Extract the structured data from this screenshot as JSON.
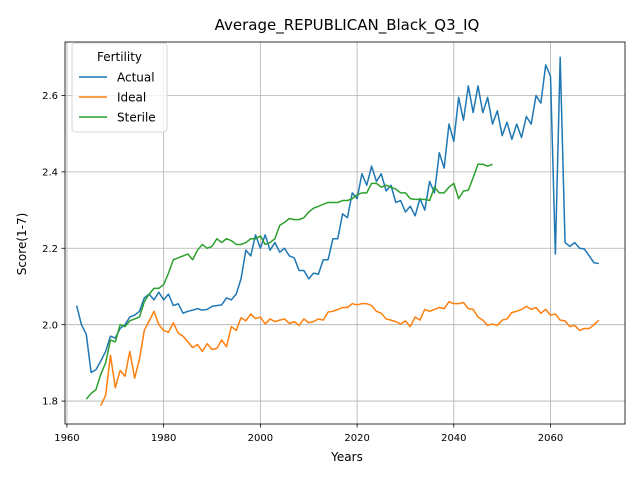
{
  "chart_data": {
    "type": "line",
    "title": "Average_REPUBLICAN_Black_Q3_IQ",
    "xlabel": "Years",
    "ylabel": "Score(1-7)",
    "xlim": [
      1959.6,
      2075.4
    ],
    "ylim": [
      1.74,
      2.74
    ],
    "xticks": [
      1960,
      1980,
      2000,
      2020,
      2040,
      2060
    ],
    "yticks": [
      1.8,
      2.0,
      2.2,
      2.4,
      2.6
    ],
    "ytick_labels": [
      "1.8",
      "2.0",
      "2.2",
      "2.4",
      "2.6"
    ],
    "grid": true,
    "legend": {
      "title": "Fertility",
      "placement": "top-left"
    },
    "series": [
      {
        "name": "Actual",
        "color": "#1f77b4",
        "x": [
          1962,
          1963,
          1964,
          1965,
          1966,
          1967,
          1968,
          1969,
          1970,
          1971,
          1972,
          1973,
          1974,
          1975,
          1976,
          1977,
          1978,
          1979,
          1980,
          1981,
          1982,
          1983,
          1984,
          1985,
          1986,
          1987,
          1988,
          1989,
          1990,
          1991,
          1992,
          1993,
          1994,
          1995,
          1996,
          1997,
          1998,
          1999,
          2000,
          2001,
          2002,
          2003,
          2004,
          2005,
          2006,
          2007,
          2008,
          2009,
          2010,
          2011,
          2012,
          2013,
          2014,
          2015,
          2016,
          2017,
          2018,
          2019,
          2020,
          2021,
          2022,
          2023,
          2024,
          2025,
          2026,
          2027,
          2028,
          2029,
          2030,
          2031,
          2032,
          2033,
          2034,
          2035,
          2036,
          2037,
          2038,
          2039,
          2040,
          2041,
          2042,
          2043,
          2044,
          2045,
          2046,
          2047,
          2048,
          2049,
          2050,
          2051,
          2052,
          2053,
          2054,
          2055,
          2056,
          2057,
          2058,
          2059,
          2060,
          2061,
          2062,
          2063,
          2064,
          2065,
          2066,
          2067,
          2068,
          2069,
          2070
        ],
        "values": [
          2.05,
          2.0,
          1.975,
          1.875,
          1.882,
          1.905,
          1.93,
          1.97,
          1.965,
          1.99,
          2.0,
          2.02,
          2.025,
          2.035,
          2.07,
          2.08,
          2.065,
          2.085,
          2.065,
          2.08,
          2.05,
          2.055,
          2.03,
          2.035,
          2.038,
          2.042,
          2.038,
          2.04,
          2.048,
          2.05,
          2.052,
          2.07,
          2.065,
          2.08,
          2.12,
          2.195,
          2.18,
          2.235,
          2.2,
          2.235,
          2.195,
          2.215,
          2.19,
          2.2,
          2.18,
          2.175,
          2.142,
          2.142,
          2.12,
          2.135,
          2.132,
          2.17,
          2.17,
          2.225,
          2.225,
          2.29,
          2.28,
          2.345,
          2.33,
          2.395,
          2.365,
          2.415,
          2.375,
          2.395,
          2.35,
          2.365,
          2.32,
          2.325,
          2.295,
          2.31,
          2.285,
          2.33,
          2.3,
          2.375,
          2.345,
          2.45,
          2.41,
          2.525,
          2.48,
          2.595,
          2.535,
          2.625,
          2.555,
          2.625,
          2.555,
          2.595,
          2.525,
          2.56,
          2.495,
          2.53,
          2.485,
          2.525,
          2.49,
          2.545,
          2.525,
          2.6,
          2.58,
          2.68,
          2.65,
          2.185,
          2.7,
          2.215,
          2.205,
          2.215,
          2.2,
          2.198,
          2.18,
          2.162,
          2.16
        ]
      },
      {
        "name": "Ideal",
        "color": "#ff7f0e",
        "x": [
          1967,
          1968,
          1969,
          1970,
          1971,
          1972,
          1973,
          1974,
          1975,
          1976,
          1977,
          1978,
          1979,
          1980,
          1981,
          1982,
          1983,
          1984,
          1985,
          1986,
          1987,
          1988,
          1989,
          1990,
          1991,
          1992,
          1993,
          1994,
          1995,
          1996,
          1997,
          1998,
          1999,
          2000,
          2001,
          2002,
          2003,
          2004,
          2005,
          2006,
          2007,
          2008,
          2009,
          2010,
          2011,
          2012,
          2013,
          2014,
          2015,
          2016,
          2017,
          2018,
          2019,
          2020,
          2021,
          2022,
          2023,
          2024,
          2025,
          2026,
          2027,
          2028,
          2029,
          2030,
          2031,
          2032,
          2033,
          2034,
          2035,
          2036,
          2037,
          2038,
          2039,
          2040,
          2041,
          2042,
          2043,
          2044,
          2045,
          2046,
          2047,
          2048,
          2049,
          2050,
          2051,
          2052,
          2053,
          2054,
          2055,
          2056,
          2057,
          2058,
          2059,
          2060,
          2061,
          2062,
          2063,
          2064,
          2065,
          2066,
          2067,
          2068,
          2069,
          2070
        ],
        "values": [
          1.788,
          1.815,
          1.92,
          1.835,
          1.88,
          1.865,
          1.93,
          1.86,
          1.91,
          1.985,
          2.01,
          2.035,
          2.0,
          1.985,
          1.98,
          2.005,
          1.978,
          1.97,
          1.955,
          1.94,
          1.948,
          1.93,
          1.95,
          1.935,
          1.938,
          1.96,
          1.942,
          1.995,
          1.985,
          2.018,
          2.01,
          2.028,
          2.016,
          2.02,
          2.002,
          2.015,
          2.008,
          2.012,
          2.015,
          2.003,
          2.008,
          1.998,
          2.015,
          2.005,
          2.008,
          2.015,
          2.012,
          2.033,
          2.035,
          2.04,
          2.045,
          2.045,
          2.055,
          2.052,
          2.055,
          2.055,
          2.05,
          2.035,
          2.03,
          2.015,
          2.012,
          2.008,
          2.002,
          2.01,
          1.995,
          2.02,
          2.012,
          2.04,
          2.035,
          2.04,
          2.045,
          2.042,
          2.06,
          2.055,
          2.055,
          2.058,
          2.042,
          2.04,
          2.02,
          2.012,
          1.998,
          2.002,
          1.998,
          2.012,
          2.015,
          2.032,
          2.035,
          2.04,
          2.048,
          2.04,
          2.045,
          2.03,
          2.04,
          2.025,
          2.028,
          2.012,
          2.01,
          1.995,
          1.998,
          1.985,
          1.99,
          1.99,
          2.0,
          2.012
        ]
      },
      {
        "name": "Sterile",
        "color": "#2ca02c",
        "x": [
          1964,
          1965,
          1966,
          1967,
          1968,
          1969,
          1970,
          1971,
          1972,
          1973,
          1974,
          1975,
          1976,
          1977,
          1978,
          1979,
          1980,
          1981,
          1982,
          1983,
          1984,
          1985,
          1986,
          1987,
          1988,
          1989,
          1990,
          1991,
          1992,
          1993,
          1994,
          1995,
          1996,
          1997,
          1998,
          1999,
          2000,
          2001,
          2002,
          2003,
          2004,
          2005,
          2006,
          2007,
          2008,
          2009,
          2010,
          2011,
          2012,
          2013,
          2014,
          2015,
          2016,
          2017,
          2018,
          2019,
          2020,
          2021,
          2022,
          2023,
          2024,
          2025,
          2026,
          2027,
          2028,
          2029,
          2030,
          2031,
          2032,
          2033,
          2034,
          2035,
          2036,
          2037,
          2038,
          2039,
          2040,
          2041,
          2042,
          2043,
          2044,
          2045,
          2046,
          2047,
          2048
        ],
        "values": [
          1.805,
          1.82,
          1.83,
          1.87,
          1.9,
          1.96,
          1.955,
          2.0,
          1.995,
          2.01,
          2.015,
          2.02,
          2.06,
          2.08,
          2.095,
          2.095,
          2.105,
          2.135,
          2.17,
          2.175,
          2.18,
          2.185,
          2.17,
          2.195,
          2.21,
          2.2,
          2.205,
          2.225,
          2.215,
          2.225,
          2.22,
          2.21,
          2.21,
          2.215,
          2.225,
          2.225,
          2.232,
          2.21,
          2.215,
          2.225,
          2.26,
          2.268,
          2.278,
          2.275,
          2.275,
          2.28,
          2.295,
          2.305,
          2.31,
          2.315,
          2.32,
          2.32,
          2.32,
          2.325,
          2.325,
          2.33,
          2.34,
          2.345,
          2.345,
          2.37,
          2.37,
          2.36,
          2.365,
          2.36,
          2.355,
          2.345,
          2.345,
          2.33,
          2.328,
          2.328,
          2.328,
          2.325,
          2.36,
          2.345,
          2.345,
          2.36,
          2.37,
          2.33,
          2.35,
          2.352,
          2.385,
          2.42,
          2.42,
          2.415,
          2.42
        ]
      }
    ]
  }
}
